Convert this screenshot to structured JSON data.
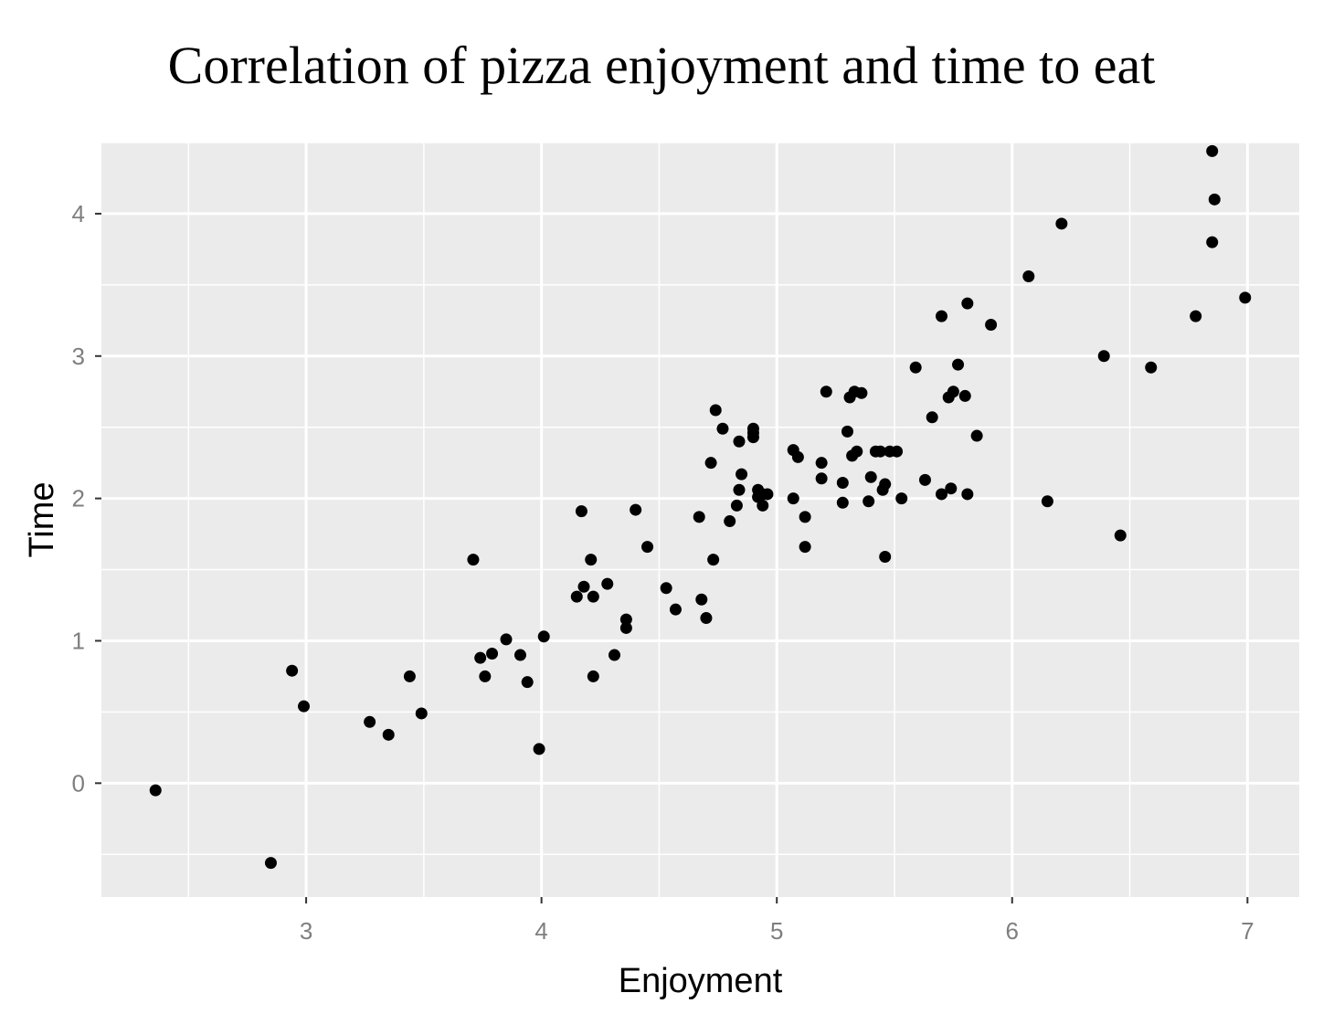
{
  "chart_data": {
    "type": "scatter",
    "title": "Correlation of pizza enjoyment and time to eat",
    "xlabel": "Enjoyment",
    "ylabel": "Time",
    "xlim": [
      2.13,
      7.22
    ],
    "ylim": [
      -0.8,
      4.5
    ],
    "xticks": [
      3,
      4,
      5,
      6,
      7
    ],
    "yticks": [
      0,
      1,
      2,
      3,
      4
    ],
    "grid": true,
    "colors": {
      "panel": "#ebebeb",
      "grid": "#ffffff",
      "point": "#000000",
      "tick_text": "#7f7f7f"
    },
    "points": [
      [
        2.36,
        -0.05
      ],
      [
        2.85,
        -0.56
      ],
      [
        2.94,
        0.79
      ],
      [
        2.99,
        0.54
      ],
      [
        3.27,
        0.43
      ],
      [
        3.35,
        0.34
      ],
      [
        3.44,
        0.75
      ],
      [
        3.49,
        0.49
      ],
      [
        3.71,
        1.57
      ],
      [
        3.74,
        0.88
      ],
      [
        3.76,
        0.75
      ],
      [
        3.79,
        0.91
      ],
      [
        3.85,
        1.01
      ],
      [
        3.91,
        0.9
      ],
      [
        3.94,
        0.71
      ],
      [
        3.99,
        0.24
      ],
      [
        4.01,
        1.03
      ],
      [
        4.15,
        1.31
      ],
      [
        4.17,
        1.91
      ],
      [
        4.18,
        1.38
      ],
      [
        4.21,
        1.57
      ],
      [
        4.22,
        0.75
      ],
      [
        4.22,
        1.31
      ],
      [
        4.28,
        1.4
      ],
      [
        4.31,
        0.9
      ],
      [
        4.36,
        1.15
      ],
      [
        4.36,
        1.09
      ],
      [
        4.4,
        1.92
      ],
      [
        4.45,
        1.66
      ],
      [
        4.53,
        1.37
      ],
      [
        4.57,
        1.22
      ],
      [
        4.67,
        1.87
      ],
      [
        4.68,
        1.29
      ],
      [
        4.7,
        1.16
      ],
      [
        4.72,
        2.25
      ],
      [
        4.73,
        1.57
      ],
      [
        4.74,
        2.62
      ],
      [
        4.77,
        2.49
      ],
      [
        4.8,
        1.84
      ],
      [
        4.83,
        1.95
      ],
      [
        4.84,
        2.4
      ],
      [
        4.84,
        2.06
      ],
      [
        4.85,
        2.17
      ],
      [
        4.9,
        2.43
      ],
      [
        4.9,
        2.46
      ],
      [
        4.9,
        2.49
      ],
      [
        4.92,
        2.01
      ],
      [
        4.92,
        2.06
      ],
      [
        4.94,
        1.95
      ],
      [
        4.94,
        2.03
      ],
      [
        4.96,
        2.03
      ],
      [
        5.07,
        2.0
      ],
      [
        5.07,
        2.34
      ],
      [
        5.09,
        2.29
      ],
      [
        5.12,
        1.87
      ],
      [
        5.12,
        1.66
      ],
      [
        5.19,
        2.25
      ],
      [
        5.19,
        2.14
      ],
      [
        5.21,
        2.75
      ],
      [
        5.28,
        2.11
      ],
      [
        5.28,
        1.97
      ],
      [
        5.3,
        2.47
      ],
      [
        5.31,
        2.71
      ],
      [
        5.32,
        2.3
      ],
      [
        5.33,
        2.75
      ],
      [
        5.34,
        2.33
      ],
      [
        5.36,
        2.74
      ],
      [
        5.39,
        1.98
      ],
      [
        5.4,
        2.15
      ],
      [
        5.42,
        2.33
      ],
      [
        5.44,
        2.33
      ],
      [
        5.45,
        2.06
      ],
      [
        5.46,
        1.59
      ],
      [
        5.46,
        2.1
      ],
      [
        5.48,
        2.33
      ],
      [
        5.51,
        2.33
      ],
      [
        5.53,
        2.0
      ],
      [
        5.59,
        2.92
      ],
      [
        5.63,
        2.13
      ],
      [
        5.66,
        2.57
      ],
      [
        5.7,
        3.28
      ],
      [
        5.7,
        2.03
      ],
      [
        5.73,
        2.71
      ],
      [
        5.74,
        2.07
      ],
      [
        5.75,
        2.75
      ],
      [
        5.77,
        2.94
      ],
      [
        5.8,
        2.72
      ],
      [
        5.81,
        3.37
      ],
      [
        5.81,
        2.03
      ],
      [
        5.85,
        2.44
      ],
      [
        5.91,
        3.22
      ],
      [
        6.07,
        3.56
      ],
      [
        6.15,
        1.98
      ],
      [
        6.21,
        3.93
      ],
      [
        6.39,
        3.0
      ],
      [
        6.46,
        1.74
      ],
      [
        6.59,
        2.92
      ],
      [
        6.78,
        3.28
      ],
      [
        6.85,
        4.44
      ],
      [
        6.85,
        3.8
      ],
      [
        6.86,
        4.1
      ],
      [
        6.99,
        3.41
      ]
    ]
  }
}
